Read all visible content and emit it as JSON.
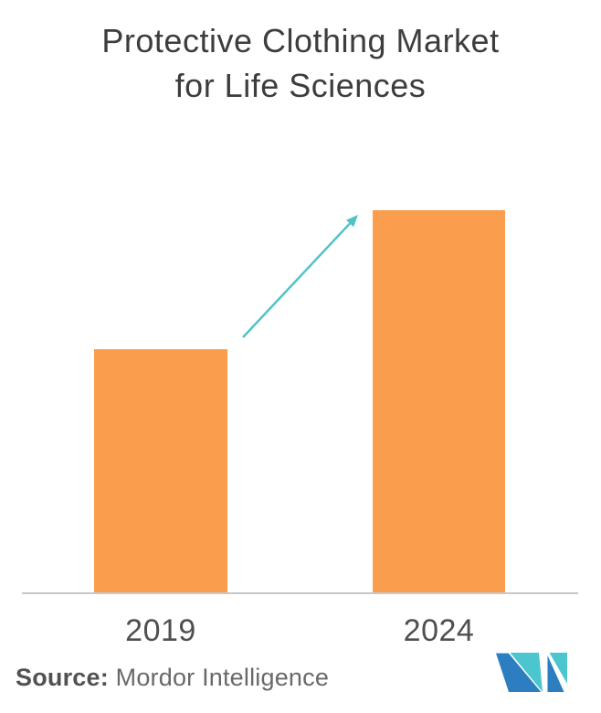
{
  "title": {
    "line1": "Protective Clothing Market",
    "line2": "for Life Sciences"
  },
  "chart_data": {
    "type": "bar",
    "title": "Protective Clothing Market for Life Sciences",
    "categories": [
      "2019",
      "2024"
    ],
    "values": [
      63.5,
      100
    ],
    "ylim": [
      0,
      119
    ],
    "xlabel": "",
    "ylabel": "",
    "value_axis_shown": false,
    "data_labels_shown": false,
    "grid": false,
    "legend": "none",
    "bar_color": "#FA9E4E",
    "annotations": [
      {
        "type": "growth-arrow",
        "from_category": "2019",
        "to_category": "2024",
        "color": "#4FC2C6"
      }
    ]
  },
  "footer": {
    "source_label": "Source:",
    "source_value": "Mordor Intelligence"
  },
  "logo": {
    "name": "Mordor Intelligence",
    "teal": "#4BC5CE",
    "blue": "#2D7EC0"
  },
  "colors": {
    "title": "#3D3D3D",
    "tick": "#4F4F4F",
    "axis_line": "#C9C7C8",
    "background": "#FFFFFF"
  }
}
